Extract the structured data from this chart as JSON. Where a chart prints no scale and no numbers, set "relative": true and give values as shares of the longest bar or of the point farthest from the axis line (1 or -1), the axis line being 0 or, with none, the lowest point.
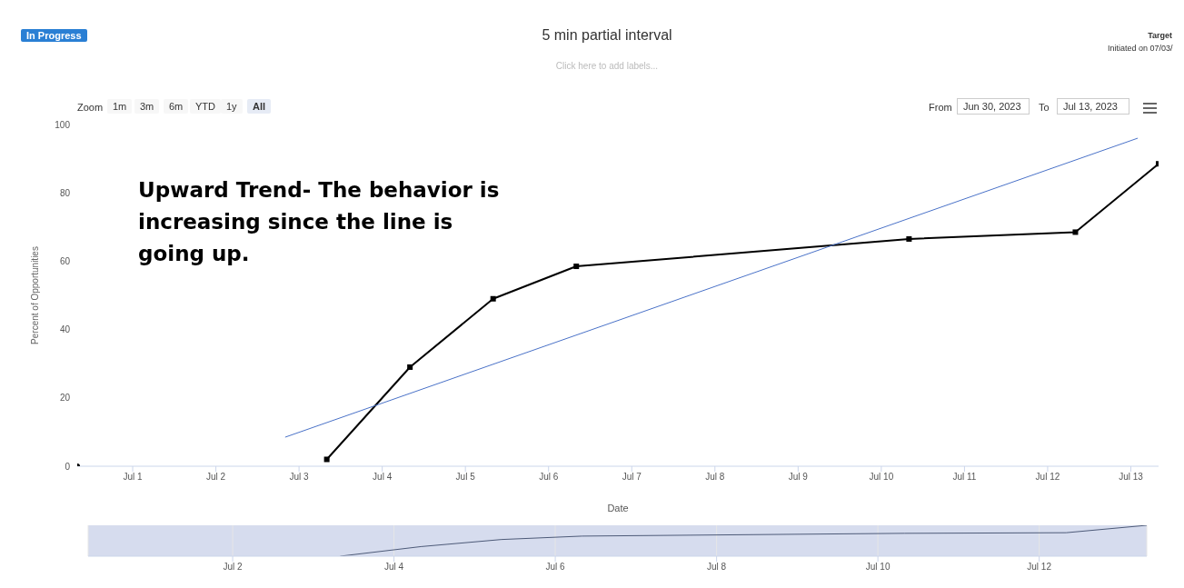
{
  "chart_data": [
    {
      "type": "line",
      "title": "5 min partial interval",
      "subtitle": "Click here to add labels...",
      "xlabel": "Date",
      "ylabel": "Percent of Opportunities",
      "x": [
        "2023-07-03T08:00",
        "2023-07-04T08:00",
        "2023-07-05T08:00",
        "2023-07-06T08:00",
        "2023-07-10T08:00",
        "2023-07-12T08:00",
        "2023-07-13T08:00"
      ],
      "series": [
        {
          "color": "#000000",
          "marker": "square",
          "values": [
            2,
            29,
            49,
            58.5,
            66.5,
            68.5,
            88.5
          ]
        },
        {
          "type": "scatter",
          "color": "#000000",
          "marker": "circle",
          "x": [
            "2023-06-30T08:00"
          ],
          "values": [
            0
          ]
        },
        {
          "type": "line",
          "color": "#4a72c8",
          "marker": "none",
          "x": [
            "2023-07-02T20:00",
            "2023-07-13T02:00"
          ],
          "values": [
            8.5,
            96
          ]
        }
      ],
      "xlim": [
        "2023-06-30T08:00",
        "2023-07-13T08:00"
      ],
      "xticks": [
        {
          "value": "2023-07-01",
          "label": "Jul 1"
        },
        {
          "value": "2023-07-02",
          "label": "Jul 2"
        },
        {
          "value": "2023-07-03",
          "label": "Jul 3"
        },
        {
          "value": "2023-07-04",
          "label": "Jul 4"
        },
        {
          "value": "2023-07-05",
          "label": "Jul 5"
        },
        {
          "value": "2023-07-06",
          "label": "Jul 6"
        },
        {
          "value": "2023-07-07",
          "label": "Jul 7"
        },
        {
          "value": "2023-07-08",
          "label": "Jul 8"
        },
        {
          "value": "2023-07-09",
          "label": "Jul 9"
        },
        {
          "value": "2023-07-10",
          "label": "Jul 10"
        },
        {
          "value": "2023-07-11",
          "label": "Jul 11"
        },
        {
          "value": "2023-07-12",
          "label": "Jul 12"
        },
        {
          "value": "2023-07-13",
          "label": "Jul 13"
        }
      ],
      "ylim": [
        0,
        100
      ],
      "yticks": [
        0,
        20,
        40,
        60,
        80,
        100
      ],
      "annotations": [
        "Upward Trend- The behavior is increasing since the line is going up.",
        "In Progress",
        "Target",
        "Initiated on 07/03/",
        "Zoom",
        "1m",
        "3m",
        "6m",
        "YTD",
        "1y",
        "All",
        "From",
        "Jun 30, 2023",
        "To",
        "Jul 13, 2023"
      ]
    },
    {
      "type": "line",
      "x": [
        "2023-07-03T08:00",
        "2023-07-04T08:00",
        "2023-07-05T08:00",
        "2023-07-06T08:00",
        "2023-07-10T08:00",
        "2023-07-12T08:00",
        "2023-07-13T08:00"
      ],
      "series": [
        {
          "color": "#4d5a78",
          "marker": "none",
          "values": [
            0,
            0.31,
            0.54,
            0.65,
            0.74,
            0.76,
            1
          ]
        }
      ],
      "xlim": [
        "2023-06-30T05:00",
        "2023-07-13T08:00"
      ],
      "xticks": [
        {
          "value": "2023-07-02",
          "label": "Jul 2"
        },
        {
          "value": "2023-07-04",
          "label": "Jul 4"
        },
        {
          "value": "2023-07-06",
          "label": "Jul 6"
        },
        {
          "value": "2023-07-08",
          "label": "Jul 8"
        },
        {
          "value": "2023-07-10",
          "label": "Jul 10"
        },
        {
          "value": "2023-07-12",
          "label": "Jul 12"
        }
      ],
      "relative": true,
      "tick_labels": "x",
      "grid": "x"
    }
  ]
}
